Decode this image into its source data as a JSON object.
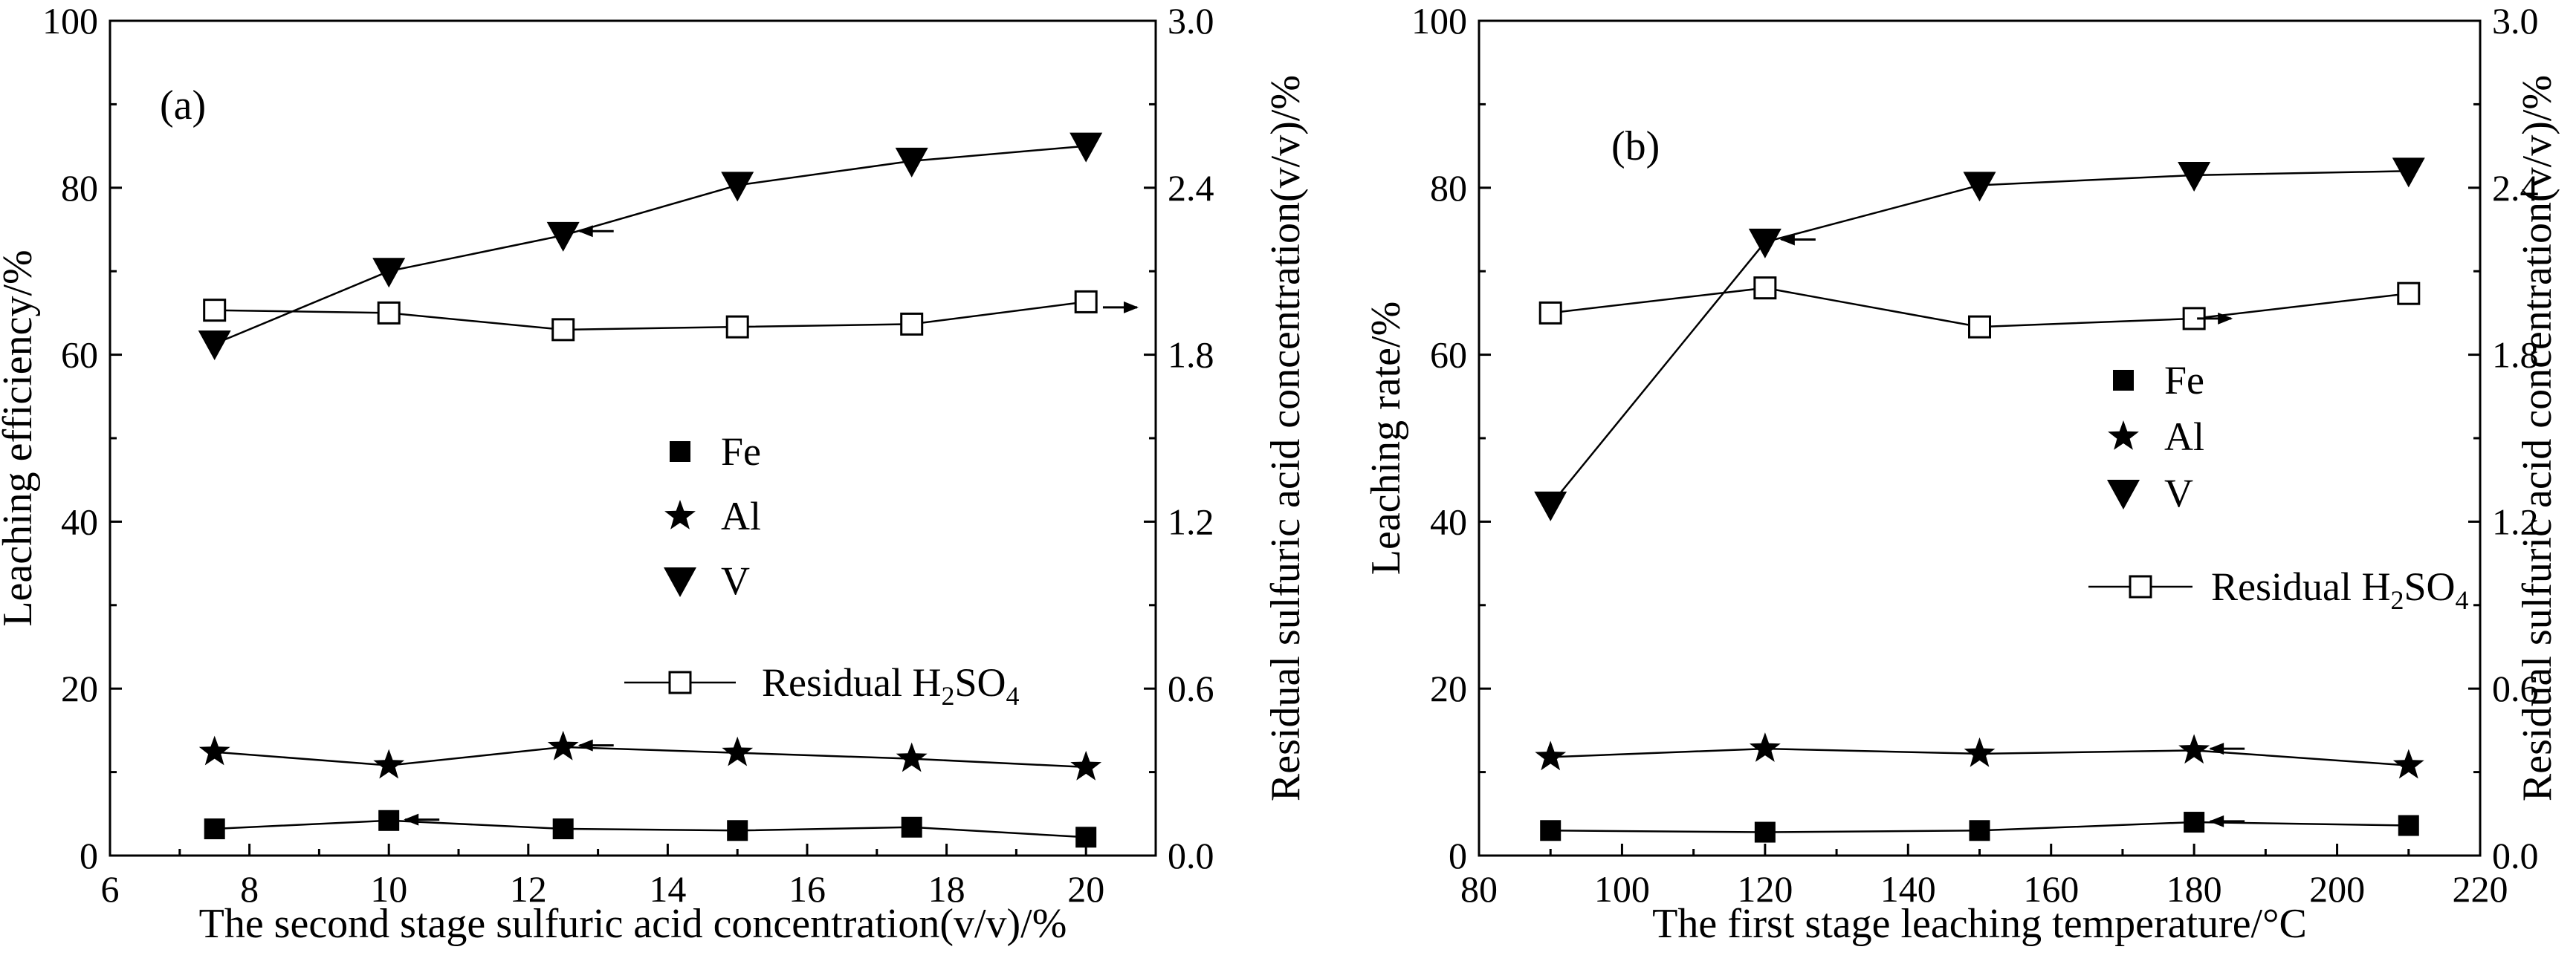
{
  "chart_data": [
    {
      "type": "line",
      "panel_label": "(a)",
      "xlabel": "The second stage sulfuric acid concentration(v/v)/%",
      "ylabel": "Leaching efficiency/%",
      "y2label": "Residual sulfuric acid concentration(v/v)/%",
      "xlim": [
        6,
        21
      ],
      "ylim": [
        0,
        100
      ],
      "y2lim": [
        0,
        3.0
      ],
      "x_ticks": [
        "6",
        "8",
        "10",
        "12",
        "14",
        "16",
        "18",
        "20"
      ],
      "x_tick_values": [
        6,
        8,
        10,
        12,
        14,
        16,
        18,
        20
      ],
      "y_ticks": [
        "0",
        "20",
        "40",
        "60",
        "80",
        "100"
      ],
      "y_tick_values": [
        0,
        20,
        40,
        60,
        80,
        100
      ],
      "y2_ticks": [
        "0.0",
        "0.6",
        "1.2",
        "1.8",
        "2.4",
        "3.0"
      ],
      "y2_tick_values": [
        0,
        0.6,
        1.2,
        1.8,
        2.4,
        3.0
      ],
      "x": [
        7.5,
        10,
        12.5,
        15,
        17.5,
        20
      ],
      "series": [
        {
          "name": "Fe",
          "marker": "square",
          "axis": "left",
          "values": [
            3.2,
            4.2,
            3.2,
            3.0,
            3.4,
            2.2
          ]
        },
        {
          "name": "Al",
          "marker": "star",
          "axis": "left",
          "values": [
            12.4,
            10.8,
            13.0,
            12.3,
            11.6,
            10.6
          ]
        },
        {
          "name": "V",
          "marker": "triangle-down",
          "axis": "left",
          "values": [
            61.3,
            70.0,
            74.3,
            80.3,
            83.2,
            85.0
          ]
        },
        {
          "name": "Residual H2SO4",
          "marker": "open-square",
          "axis": "right",
          "values": [
            1.96,
            1.95,
            1.89,
            1.9,
            1.91,
            1.99
          ]
        }
      ],
      "legend": [
        {
          "label": "Fe",
          "marker": "square",
          "line": false
        },
        {
          "label": "Al",
          "marker": "star",
          "line": false
        },
        {
          "label": "V",
          "marker": "triangle-down",
          "line": false
        },
        {
          "label": "Residual H",
          "sub1": "2",
          "mid": "SO",
          "sub2": "4",
          "marker": "open-square",
          "line": true
        }
      ],
      "arrows": [
        {
          "x": 10,
          "y": 4.3,
          "axis": "left",
          "dir": "left"
        },
        {
          "x": 12.5,
          "y": 13.2,
          "axis": "left",
          "dir": "left"
        },
        {
          "x": 12.5,
          "y": 74.8,
          "axis": "left",
          "dir": "left"
        },
        {
          "x": 20.2,
          "y": 1.97,
          "axis": "right",
          "dir": "right"
        }
      ]
    },
    {
      "type": "line",
      "panel_label": "(b)",
      "xlabel": "The first stage leaching temperature/°C",
      "ylabel": "Leaching rate/%",
      "y2label": "Residual sulfuric acid concentration(v/v)/%",
      "xlim": [
        80,
        220
      ],
      "ylim": [
        0,
        100
      ],
      "y2lim": [
        0,
        3.0
      ],
      "x_ticks": [
        "80",
        "100",
        "120",
        "140",
        "160",
        "180",
        "200",
        "220"
      ],
      "x_tick_values": [
        80,
        100,
        120,
        140,
        160,
        180,
        200,
        220
      ],
      "y_ticks": [
        "0",
        "20",
        "40",
        "60",
        "80",
        "100"
      ],
      "y_tick_values": [
        0,
        20,
        40,
        60,
        80,
        100
      ],
      "y2_ticks": [
        "0.0",
        "0.6",
        "1.2",
        "1.8",
        "2.4",
        "3.0"
      ],
      "y2_tick_values": [
        0,
        0.6,
        1.2,
        1.8,
        2.4,
        3.0
      ],
      "x": [
        90,
        120,
        150,
        180,
        210
      ],
      "series": [
        {
          "name": "Fe",
          "marker": "square",
          "axis": "left",
          "values": [
            3.0,
            2.8,
            3.0,
            4.0,
            3.6
          ]
        },
        {
          "name": "Al",
          "marker": "star",
          "axis": "left",
          "values": [
            11.8,
            12.8,
            12.2,
            12.6,
            10.8
          ]
        },
        {
          "name": "V",
          "marker": "triangle-down",
          "axis": "left",
          "values": [
            42.0,
            73.5,
            80.3,
            81.5,
            82.0
          ]
        },
        {
          "name": "Residual H2SO4",
          "marker": "open-square",
          "axis": "right",
          "values": [
            1.95,
            2.04,
            1.9,
            1.93,
            2.02
          ]
        }
      ],
      "legend": [
        {
          "label": "Fe",
          "marker": "square",
          "line": false
        },
        {
          "label": "Al",
          "marker": "star",
          "line": false
        },
        {
          "label": "V",
          "marker": "triangle-down",
          "line": false
        },
        {
          "label": "Residual H",
          "sub1": "2",
          "mid": "SO",
          "sub2": "4",
          "marker": "open-square",
          "line": true
        }
      ],
      "arrows": [
        {
          "x": 120,
          "y": 73.8,
          "axis": "left",
          "dir": "left"
        },
        {
          "x": 180,
          "y": 12.8,
          "axis": "left",
          "dir": "left"
        },
        {
          "x": 180,
          "y": 4.1,
          "axis": "left",
          "dir": "left"
        },
        {
          "x": 180,
          "y": 1.93,
          "axis": "right",
          "dir": "right"
        }
      ]
    }
  ]
}
